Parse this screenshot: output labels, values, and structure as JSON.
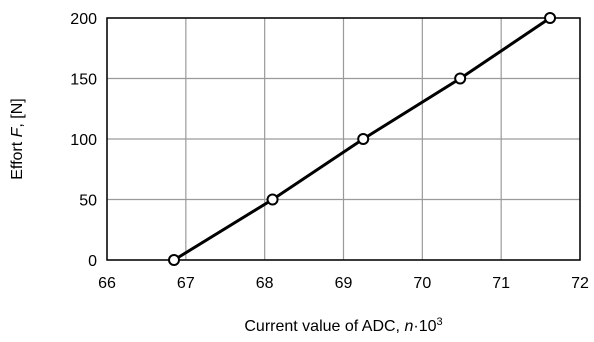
{
  "chart_data": {
    "type": "line",
    "xlabel": {
      "prefix": "Current value of ADC, ",
      "var": "n",
      "mid": "·10",
      "sup": "3"
    },
    "ylabel": {
      "prefix": "Effort ",
      "var": "F",
      "suffix": ", [N]"
    },
    "xlim": [
      66,
      72
    ],
    "ylim": [
      0,
      200
    ],
    "xticks": [
      66,
      67,
      68,
      69,
      70,
      71,
      72
    ],
    "yticks": [
      0,
      50,
      100,
      150,
      200
    ],
    "grid": true,
    "legend": "none",
    "line_color": "#000000",
    "marker": "open-circle",
    "series": [
      {
        "x": [
          66.85,
          68.1,
          69.25,
          70.48,
          71.62
        ],
        "y": [
          0,
          50,
          100,
          150,
          200
        ]
      }
    ]
  }
}
